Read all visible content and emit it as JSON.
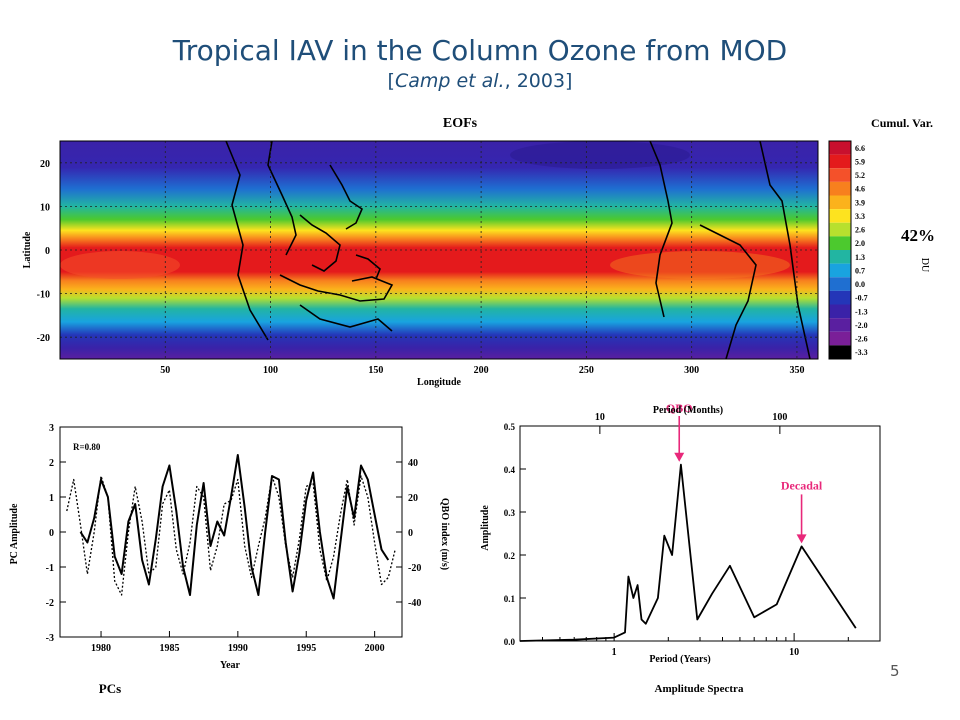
{
  "slide": {
    "title": "Tropical IAV in the Column Ozone from MOD",
    "subtitle_open": "[",
    "subtitle_italic": "Camp et al.",
    "subtitle_rest": ", 2003]",
    "page_number": "5"
  },
  "colors": {
    "title": "#1f4e79",
    "annotation": "#e8287a"
  },
  "chart_data": [
    {
      "type": "heatmap",
      "title": "EOFs",
      "xlabel": "Longitude",
      "ylabel": "Latitude",
      "xlim": [
        0,
        360
      ],
      "ylim": [
        -25,
        25
      ],
      "xticks": [
        50,
        100,
        150,
        200,
        250,
        300,
        350
      ],
      "yticks": [
        -20,
        -10,
        0,
        10,
        20
      ],
      "annotation": "42%",
      "colorbar": {
        "title": "Cumul. Var.",
        "axis_label": "DU",
        "levels": [
          "6.6",
          "5.9",
          "5.2",
          "4.6",
          "3.9",
          "3.3",
          "2.6",
          "2.0",
          "1.3",
          "0.7",
          "0.0",
          "-0.7",
          "-1.3",
          "-2.0",
          "-2.6",
          "-3.3"
        ],
        "colors": [
          "#c8102e",
          "#e41a1c",
          "#f4512a",
          "#f7801e",
          "#fbb21c",
          "#fde31f",
          "#b8e02e",
          "#4cc92e",
          "#22b5a2",
          "#19a3e0",
          "#1f6fd1",
          "#2436b8",
          "#3a22a8",
          "#5a1fa0",
          "#7a1f98",
          "#000000"
        ]
      }
    },
    {
      "type": "line",
      "title": "PCs",
      "xlabel": "Year",
      "ylabel": "PC Amplitude",
      "ylabel_right": "QBO index (m/s)",
      "annotation": "R=0.80",
      "xlim": [
        1977,
        2002
      ],
      "ylim": [
        -3,
        3
      ],
      "ylim_right": [
        -60,
        60
      ],
      "xticks": [
        1980,
        1985,
        1990,
        1995,
        2000
      ],
      "yticks": [
        -3,
        -2,
        -1,
        0,
        1,
        2,
        3
      ],
      "yticks_right": [
        -40,
        -20,
        0,
        20,
        40
      ],
      "series": [
        {
          "style": "solid",
          "x": [
            1978.5,
            1979.0,
            1979.5,
            1980.0,
            1980.5,
            1981.0,
            1981.5,
            1982.0,
            1982.5,
            1983.0,
            1983.5,
            1984.0,
            1984.5,
            1985.0,
            1985.5,
            1986.0,
            1986.5,
            1987.0,
            1987.5,
            1988.0,
            1988.5,
            1989.0,
            1989.5,
            1990.0,
            1990.5,
            1991.0,
            1991.5,
            1992.0,
            1992.5,
            1993.0,
            1993.5,
            1994.0,
            1994.5,
            1995.0,
            1995.5,
            1996.0,
            1996.5,
            1997.0,
            1997.5,
            1998.0,
            1998.5,
            1999.0,
            1999.5,
            2000.0,
            2000.5,
            2001.0
          ],
          "y": [
            0.0,
            -0.3,
            0.4,
            1.5,
            1.0,
            -0.7,
            -1.2,
            0.3,
            0.8,
            -0.8,
            -1.5,
            -0.2,
            1.3,
            1.9,
            0.6,
            -1.0,
            -1.8,
            0.2,
            1.4,
            -0.4,
            0.3,
            -0.1,
            1.0,
            2.2,
            0.7,
            -1.0,
            -1.8,
            0.0,
            1.6,
            1.5,
            -0.3,
            -1.7,
            -0.6,
            0.9,
            1.7,
            0.0,
            -1.3,
            -1.9,
            -0.3,
            1.3,
            0.4,
            1.9,
            1.5,
            0.5,
            -0.5,
            -0.8
          ]
        },
        {
          "style": "dotted",
          "x": [
            1977.5,
            1978.0,
            1978.5,
            1979.0,
            1979.5,
            1980.0,
            1980.5,
            1981.0,
            1981.5,
            1982.0,
            1982.5,
            1983.0,
            1983.5,
            1984.0,
            1984.5,
            1985.0,
            1985.5,
            1986.0,
            1986.5,
            1987.0,
            1987.5,
            1988.0,
            1988.5,
            1989.0,
            1989.5,
            1990.0,
            1990.5,
            1991.0,
            1991.5,
            1992.0,
            1992.5,
            1993.0,
            1993.5,
            1994.0,
            1994.5,
            1995.0,
            1995.5,
            1996.0,
            1996.5,
            1997.0,
            1997.5,
            1998.0,
            1998.5,
            1999.0,
            1999.5,
            2000.0,
            2000.5,
            2001.0,
            2001.5
          ],
          "y": [
            0.6,
            1.5,
            0.2,
            -1.2,
            0.0,
            1.6,
            1.0,
            -1.4,
            -1.8,
            0.0,
            1.3,
            0.3,
            -1.2,
            -1.0,
            0.8,
            1.2,
            -0.5,
            -1.2,
            -0.3,
            1.3,
            1.0,
            -1.1,
            -0.4,
            0.8,
            0.9,
            1.5,
            -0.4,
            -1.3,
            -0.4,
            0.4,
            1.6,
            1.0,
            -0.4,
            -1.3,
            -0.2,
            1.3,
            1.4,
            -0.5,
            -1.4,
            -0.7,
            0.5,
            1.5,
            0.2,
            1.6,
            1.0,
            -0.3,
            -1.5,
            -1.3,
            -0.5
          ]
        }
      ]
    },
    {
      "type": "line",
      "title": "Amplitude Spectra",
      "xlabel": "Period (Years)",
      "x2label": "Period (Months)",
      "ylabel": "Amplitude",
      "xscale": "log",
      "xlim": [
        0.3,
        30
      ],
      "ylim": [
        0,
        0.5
      ],
      "xticks": [
        1,
        10
      ],
      "x2ticks": [
        10,
        100
      ],
      "yticks": [
        0.0,
        0.1,
        0.2,
        0.3,
        0.4,
        0.5
      ],
      "annotations": [
        {
          "text": "QBO",
          "x": 2.3,
          "y": 0.41
        },
        {
          "text": "Decadal",
          "x": 11,
          "y": 0.22
        }
      ],
      "series": [
        {
          "x": [
            0.3,
            0.6,
            1.0,
            1.15,
            1.2,
            1.28,
            1.35,
            1.42,
            1.5,
            1.75,
            1.9,
            2.1,
            2.35,
            2.9,
            3.5,
            4.4,
            6.0,
            8.0,
            11.0,
            22.0
          ],
          "y": [
            0.0,
            0.003,
            0.008,
            0.02,
            0.15,
            0.1,
            0.13,
            0.05,
            0.04,
            0.1,
            0.245,
            0.2,
            0.41,
            0.05,
            0.11,
            0.175,
            0.055,
            0.085,
            0.22,
            0.03
          ]
        }
      ]
    }
  ]
}
